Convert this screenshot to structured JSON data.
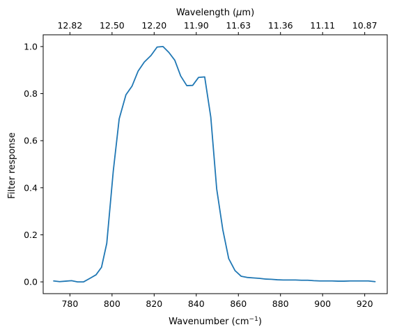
{
  "chart_data": {
    "type": "line",
    "xlabel": "Wavenumber (cm",
    "xlabel_sup": "−1",
    "xlabel_suffix": ")",
    "ylabel": "Filter response",
    "top_xlabel": "Wavelength (",
    "top_xlabel_mu": "μ",
    "top_xlabel_suffix": "m)",
    "xlim": [
      767.3,
      930.7
    ],
    "ylim": [
      -0.05,
      1.05
    ],
    "xticks": [
      780,
      800,
      820,
      840,
      860,
      880,
      900,
      920
    ],
    "xtick_labels": [
      "780",
      "800",
      "820",
      "840",
      "860",
      "880",
      "900",
      "920"
    ],
    "yticks": [
      0.0,
      0.2,
      0.4,
      0.6,
      0.8,
      1.0
    ],
    "ytick_labels": [
      "0.0",
      "0.2",
      "0.4",
      "0.6",
      "0.8",
      "1.0"
    ],
    "top_ticks": [
      780,
      800,
      820,
      840,
      860,
      880,
      900,
      920
    ],
    "top_tick_labels": [
      "12.82",
      "12.50",
      "12.20",
      "11.90",
      "11.63",
      "11.36",
      "11.11",
      "10.87"
    ],
    "grid": false,
    "line_color": "#1f77b4",
    "series": [
      {
        "x": [
          772.3,
          775.1,
          777.9,
          780.8,
          783.6,
          786.5,
          789.5,
          792.4,
          795.0,
          797.5,
          800.6,
          803.4,
          806.6,
          809.5,
          812.4,
          815.3,
          818.5,
          821.4,
          824.2,
          827.0,
          829.8,
          832.6,
          835.5,
          838.3,
          841.1,
          844.0,
          846.9,
          849.7,
          852.6,
          855.4,
          858.4,
          861.3,
          864.1,
          867.0,
          869.9,
          872.7,
          875.6,
          878.5,
          881.3,
          884.2,
          887.1,
          890.0,
          893.0,
          895.8,
          898.7,
          901.6,
          904.5,
          907.3,
          910.2,
          913.1,
          916.0,
          918.8,
          921.7,
          924.9
        ],
        "y": [
          0.004,
          0.001,
          0.003,
          0.005,
          0.0,
          0.0,
          0.015,
          0.03,
          0.062,
          0.164,
          0.472,
          0.693,
          0.795,
          0.832,
          0.896,
          0.934,
          0.962,
          0.998,
          1.0,
          0.975,
          0.942,
          0.875,
          0.834,
          0.835,
          0.869,
          0.871,
          0.7,
          0.395,
          0.222,
          0.099,
          0.048,
          0.024,
          0.019,
          0.017,
          0.015,
          0.012,
          0.011,
          0.009,
          0.008,
          0.008,
          0.008,
          0.007,
          0.007,
          0.005,
          0.004,
          0.004,
          0.004,
          0.003,
          0.003,
          0.004,
          0.004,
          0.004,
          0.004,
          0.001
        ]
      }
    ]
  }
}
